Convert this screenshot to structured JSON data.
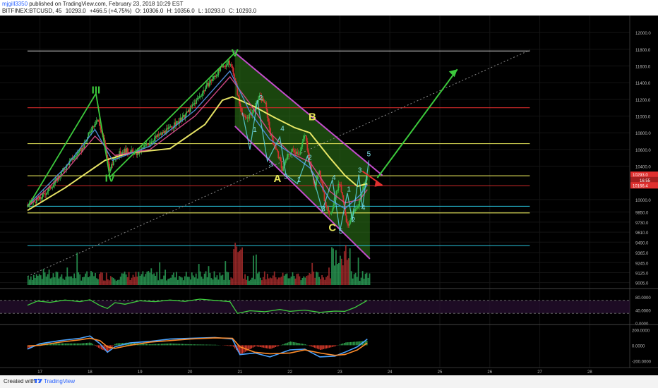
{
  "header": {
    "user": "mjgill3350",
    "published": "published on TradingView.com, February 23, 2018 10:29 EST",
    "symbol": "BITFINEX:BTCUSD, 45",
    "last": "10293.0",
    "change": "+466.5 (+4.75%)",
    "open": "O: 10306.0",
    "high": "H: 10356.0",
    "low": "L: 10293.0",
    "close": "C: 10293.0"
  },
  "footer": {
    "created": "Created with",
    "brand": "TradingView"
  },
  "colors": {
    "green_line": "#3cc93c",
    "magenta_channel": "#c44dcc",
    "yellow_ma": "#f3f06a",
    "red_line": "#d12a2a",
    "cyan_line": "#27c3dc",
    "label_yellow": "#e6e65a",
    "price_tag_red": "#e0302f",
    "up_bar": "#2a9d56",
    "down_bar": "#a82c2c"
  },
  "chart_data": [
    {
      "type": "candlestick",
      "xlabel": "",
      "ylabel": "",
      "x_ticks": [
        "17",
        "18",
        "19",
        "20",
        "21",
        "22",
        "23",
        "24",
        "25",
        "26",
        "27",
        "28"
      ],
      "y_ticks": [
        "12000.0",
        "11800.0",
        "11600.0",
        "11400.0",
        "11200.0",
        "11000.0",
        "10800.0",
        "10600.0",
        "10400.0",
        "10000.0",
        "9850.0",
        "9730.0",
        "9610.0",
        "9490.0",
        "9365.0",
        "9245.0",
        "9125.0",
        "9005.0"
      ],
      "ylim": [
        8960,
        12120
      ],
      "price_tags": [
        "10293.0",
        "16:55",
        "10166.4"
      ],
      "price_path": [
        [
          16.75,
          9935
        ],
        [
          17.0,
          10010
        ],
        [
          17.3,
          10210
        ],
        [
          17.6,
          10460
        ],
        [
          17.85,
          10610
        ],
        [
          18.05,
          10880
        ],
        [
          18.15,
          10960
        ],
        [
          18.25,
          10780
        ],
        [
          18.4,
          10340
        ],
        [
          18.5,
          10520
        ],
        [
          18.7,
          10590
        ],
        [
          18.95,
          10550
        ],
        [
          19.1,
          10640
        ],
        [
          19.3,
          10740
        ],
        [
          19.55,
          10830
        ],
        [
          19.85,
          10970
        ],
        [
          20.1,
          11160
        ],
        [
          20.4,
          11410
        ],
        [
          20.55,
          11520
        ],
        [
          20.7,
          11610
        ],
        [
          20.78,
          11640
        ],
        [
          20.86,
          11560
        ],
        [
          21.0,
          11120
        ],
        [
          21.1,
          10960
        ],
        [
          21.25,
          11040
        ],
        [
          21.38,
          11230
        ],
        [
          21.5,
          11170
        ],
        [
          21.62,
          10760
        ],
        [
          21.75,
          10560
        ],
        [
          21.85,
          10360
        ],
        [
          21.95,
          10520
        ],
        [
          22.05,
          10590
        ],
        [
          22.2,
          10560
        ],
        [
          22.3,
          10790
        ],
        [
          22.4,
          10440
        ],
        [
          22.5,
          10150
        ],
        [
          22.58,
          10360
        ],
        [
          22.7,
          9980
        ],
        [
          22.8,
          9790
        ],
        [
          22.9,
          10030
        ],
        [
          23.0,
          10220
        ],
        [
          23.08,
          9950
        ],
        [
          23.15,
          9680
        ],
        [
          23.25,
          9820
        ],
        [
          23.35,
          9890
        ],
        [
          23.45,
          10120
        ],
        [
          23.55,
          10290
        ]
      ],
      "moving_averages": [
        {
          "name": "",
          "color": "#f3f06a",
          "values": [
            [
              16.75,
              9870
            ],
            [
              17.5,
              10140
            ],
            [
              18.3,
              10470
            ],
            [
              18.8,
              10560
            ],
            [
              19.6,
              10610
            ],
            [
              20.3,
              10900
            ],
            [
              20.65,
              11190
            ],
            [
              20.85,
              11230
            ],
            [
              21.3,
              11110
            ],
            [
              21.7,
              10980
            ],
            [
              22.1,
              10860
            ],
            [
              22.4,
              10800
            ],
            [
              22.8,
              10500
            ],
            [
              23.1,
              10290
            ],
            [
              23.35,
              10160
            ],
            [
              23.55,
              10190
            ]
          ]
        },
        {
          "name": "",
          "color": "#d84a8a",
          "values": [
            [
              16.75,
              9910
            ],
            [
              17.5,
              10330
            ],
            [
              18.1,
              10760
            ],
            [
              18.5,
              10530
            ],
            [
              19.2,
              10600
            ],
            [
              20.1,
              11000
            ],
            [
              20.8,
              11470
            ],
            [
              21.2,
              11150
            ],
            [
              21.6,
              10800
            ],
            [
              22.0,
              10560
            ],
            [
              22.4,
              10450
            ],
            [
              22.8,
              10100
            ],
            [
              23.1,
              9960
            ],
            [
              23.4,
              10000
            ],
            [
              23.55,
              10120
            ]
          ]
        },
        {
          "name": "",
          "color": "#4f8fdc",
          "values": [
            [
              16.75,
              9930
            ],
            [
              17.5,
              10380
            ],
            [
              18.1,
              10840
            ],
            [
              18.45,
              10470
            ],
            [
              19.2,
              10640
            ],
            [
              20.1,
              11070
            ],
            [
              20.8,
              11540
            ],
            [
              21.2,
              11050
            ],
            [
              21.6,
              10720
            ],
            [
              22.0,
              10560
            ],
            [
              22.4,
              10380
            ],
            [
              22.8,
              10000
            ],
            [
              23.1,
              9890
            ],
            [
              23.4,
              10050
            ],
            [
              23.55,
              10180
            ]
          ]
        }
      ],
      "volume": "",
      "annotations": {
        "wave_labels": [
          {
            "text": "III",
            "x": 18.12,
            "y": 11270,
            "color": "#3cc93c"
          },
          {
            "text": "IV",
            "x": 18.4,
            "y": 10215,
            "color": "#3cc93c"
          },
          {
            "text": "V",
            "x": 20.9,
            "y": 11715,
            "color": "#3cc93c"
          },
          {
            "text": "A",
            "x": 21.75,
            "y": 10210,
            "color": "#e6e65a"
          },
          {
            "text": "B",
            "x": 22.45,
            "y": 10950,
            "color": "#e6e65a"
          },
          {
            "text": "C",
            "x": 22.85,
            "y": 9625,
            "color": "#e6e65a"
          },
          {
            "text": "1",
            "x": 21.3,
            "y": 10810,
            "color": "#7ee0e8"
          },
          {
            "text": "2",
            "x": 21.42,
            "y": 11190,
            "color": "#7ee0e8"
          },
          {
            "text": "3",
            "x": 21.62,
            "y": 10395,
            "color": "#7ee0e8"
          },
          {
            "text": "4",
            "x": 21.85,
            "y": 10825,
            "color": "#7ee0e8"
          },
          {
            "text": "5",
            "x": 21.92,
            "y": 10250,
            "color": "#7ee0e8"
          },
          {
            "text": "1",
            "x": 22.18,
            "y": 10210,
            "color": "#7ee0e8"
          },
          {
            "text": "2",
            "x": 22.4,
            "y": 10475,
            "color": "#7ee0e8"
          },
          {
            "text": "3",
            "x": 22.67,
            "y": 9860,
            "color": "#7ee0e8"
          },
          {
            "text": "4",
            "x": 22.88,
            "y": 10235,
            "color": "#7ee0e8"
          },
          {
            "text": "5",
            "x": 23.02,
            "y": 9595,
            "color": "#7ee0e8"
          },
          {
            "text": "1",
            "x": 23.18,
            "y": 10095,
            "color": "#7ee0e8"
          },
          {
            "text": "2",
            "x": 23.27,
            "y": 9730,
            "color": "#7ee0e8"
          },
          {
            "text": "3",
            "x": 23.4,
            "y": 10325,
            "color": "#7ee0e8"
          },
          {
            "text": "4",
            "x": 23.47,
            "y": 9875,
            "color": "#7ee0e8"
          },
          {
            "text": "5",
            "x": 23.58,
            "y": 10520,
            "color": "#7ee0e8"
          }
        ],
        "horizontal_lines": [
          {
            "y": 11780,
            "color": "#d8d8d8",
            "x_from": 16.75,
            "x_to": 26.8
          },
          {
            "y": 11100,
            "color": "#d12a2a",
            "x_from": 16.75,
            "x_to": 26.8
          },
          {
            "y": 10670,
            "color": "#e6e65a",
            "x_from": 16.75,
            "x_to": 26.8
          },
          {
            "y": 10285,
            "color": "#e6e65a",
            "x_from": 16.75,
            "x_to": 26.8
          },
          {
            "y": 10165,
            "color": "#d12a2a",
            "x_from": 16.75,
            "x_to": 26.8
          },
          {
            "y": 9920,
            "color": "#27c3dc",
            "x_from": 16.75,
            "x_to": 26.8
          },
          {
            "y": 9840,
            "color": "#e6e65a",
            "x_from": 16.75,
            "x_to": 26.8
          },
          {
            "y": 9448,
            "color": "#27c3dc",
            "x_from": 16.75,
            "x_to": 26.8
          }
        ],
        "trend_line": {
          "from": [
            16.75,
            9080
          ],
          "to": [
            26.8,
            11790
          ],
          "style": "dotted"
        },
        "impulse_path": [
          [
            16.75,
            9910
          ],
          [
            18.12,
            11270
          ],
          [
            18.4,
            10270
          ],
          [
            20.9,
            11760
          ]
        ],
        "channel": {
          "upper": [
            [
              20.9,
              11760
            ],
            [
              23.85,
              10290
            ]
          ],
          "lower": [
            [
              20.9,
              10880
            ],
            [
              23.6,
              9290
            ]
          ]
        },
        "projection_arrow": {
          "from": [
            23.75,
            10260
          ],
          "to": [
            25.35,
            11560
          ],
          "color": "#3cc93c"
        },
        "red_arrow": {
          "from": [
            23.45,
            10340
          ],
          "to": [
            23.85,
            10170
          ],
          "color": "#e0302f"
        }
      }
    },
    {
      "type": "line",
      "xlabel": "",
      "ylabel": "",
      "ylim": [
        0,
        100
      ],
      "y_ticks": [
        "80.0000",
        "40.0000",
        "0.0000"
      ],
      "band": [
        30,
        70
      ],
      "series": [
        {
          "name": "",
          "color": "#3ed13e",
          "values": [
            [
              16.75,
              55
            ],
            [
              16.95,
              68
            ],
            [
              17.2,
              64
            ],
            [
              17.5,
              71
            ],
            [
              17.8,
              66
            ],
            [
              18.0,
              72
            ],
            [
              18.2,
              54
            ],
            [
              18.35,
              45
            ],
            [
              18.5,
              63
            ],
            [
              18.7,
              58
            ],
            [
              19.0,
              69
            ],
            [
              19.3,
              66
            ],
            [
              19.6,
              71
            ],
            [
              19.9,
              67
            ],
            [
              20.2,
              74
            ],
            [
              20.5,
              70
            ],
            [
              20.8,
              66
            ],
            [
              20.95,
              30
            ],
            [
              21.2,
              38
            ],
            [
              21.5,
              35
            ],
            [
              21.8,
              42
            ],
            [
              22.0,
              36
            ],
            [
              22.3,
              40
            ],
            [
              22.6,
              33
            ],
            [
              22.9,
              37
            ],
            [
              23.1,
              36
            ],
            [
              23.3,
              48
            ],
            [
              23.55,
              70
            ]
          ]
        }
      ]
    },
    {
      "type": "line",
      "xlabel": "",
      "ylabel": "",
      "ylim": [
        -260,
        240
      ],
      "y_ticks": [
        "200.0000",
        "0.0000",
        "-200.0000"
      ],
      "series": [
        {
          "name": "",
          "color": "#4aa3ff",
          "values": [
            [
              16.75,
              -50
            ],
            [
              17.0,
              20
            ],
            [
              17.4,
              60
            ],
            [
              17.8,
              90
            ],
            [
              18.0,
              120
            ],
            [
              18.2,
              20
            ],
            [
              18.35,
              -90
            ],
            [
              18.5,
              -20
            ],
            [
              18.8,
              30
            ],
            [
              19.2,
              50
            ],
            [
              19.6,
              80
            ],
            [
              20.0,
              90
            ],
            [
              20.5,
              100
            ],
            [
              20.85,
              80
            ],
            [
              21.0,
              -120
            ],
            [
              21.3,
              -100
            ],
            [
              21.6,
              -150
            ],
            [
              22.0,
              -60
            ],
            [
              22.3,
              -50
            ],
            [
              22.6,
              -150
            ],
            [
              22.9,
              -140
            ],
            [
              23.1,
              -90
            ],
            [
              23.35,
              -20
            ],
            [
              23.55,
              80
            ]
          ]
        },
        {
          "name": "",
          "color": "#ff8c2a",
          "values": [
            [
              16.75,
              -10
            ],
            [
              17.0,
              0
            ],
            [
              17.4,
              40
            ],
            [
              17.8,
              70
            ],
            [
              18.0,
              90
            ],
            [
              18.2,
              60
            ],
            [
              18.35,
              -20
            ],
            [
              18.5,
              -40
            ],
            [
              18.8,
              0
            ],
            [
              19.2,
              40
            ],
            [
              19.6,
              60
            ],
            [
              20.0,
              80
            ],
            [
              20.5,
              95
            ],
            [
              20.85,
              90
            ],
            [
              21.0,
              -20
            ],
            [
              21.3,
              -90
            ],
            [
              21.6,
              -110
            ],
            [
              22.0,
              -100
            ],
            [
              22.3,
              -60
            ],
            [
              22.6,
              -100
            ],
            [
              22.9,
              -130
            ],
            [
              23.1,
              -120
            ],
            [
              23.35,
              -60
            ],
            [
              23.55,
              30
            ]
          ]
        }
      ]
    }
  ]
}
